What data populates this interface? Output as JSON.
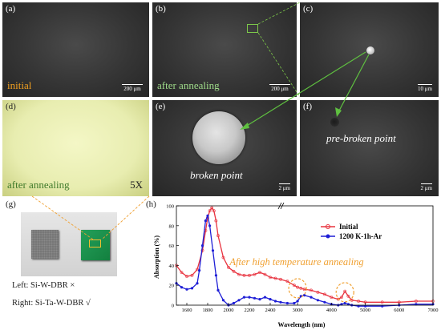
{
  "panels": {
    "a": {
      "label": "(a)",
      "caption": "initial",
      "scale": "200 μm"
    },
    "b": {
      "label": "(b)",
      "caption": "after annealing",
      "scale": "200 μm"
    },
    "c": {
      "label": "(c)",
      "scale": "10 μm"
    },
    "d": {
      "label": "(d)",
      "caption": "after annealing",
      "magnification": "5X"
    },
    "e": {
      "label": "(e)",
      "caption": "broken point",
      "scale": "2 μm"
    },
    "f": {
      "label": "(f)",
      "caption": "pre-broken point",
      "scale": "2 μm"
    },
    "g": {
      "label": "(g)",
      "left_text": "Left: Si-W-DBR ×",
      "right_text": "Right: Si-Ta-W-DBR √"
    },
    "h": {
      "label": "(h)",
      "annotation": "After high temperature annealing"
    }
  },
  "colors": {
    "initial": "#e8333f",
    "annealed": "#1f1fd6",
    "annotation": "#f0a030",
    "caption_orange": "#f2a020",
    "caption_green": "#9fdc8a"
  },
  "chart_data": {
    "type": "line",
    "xlabel": "Wavelength (nm)",
    "ylabel": "Absorption (%)",
    "xlim": [
      1500,
      7000
    ],
    "ylim": [
      0,
      100
    ],
    "xticks_low": [
      1600,
      1800,
      2000,
      2200,
      2400
    ],
    "xticks_high": [
      3000,
      4000,
      5000,
      6000,
      7000
    ],
    "yticks": [
      0,
      20,
      40,
      60,
      80,
      100
    ],
    "legend": "top-right",
    "series": [
      {
        "name": "Initial",
        "color": "#e8333f",
        "x": [
          1500,
          1550,
          1600,
          1650,
          1700,
          1750,
          1780,
          1800,
          1820,
          1840,
          1860,
          1880,
          1900,
          1950,
          2000,
          2050,
          2100,
          2150,
          2200,
          2250,
          2300,
          2350,
          2400,
          2450,
          2500,
          2700,
          2900,
          3000,
          3100,
          3200,
          3400,
          3600,
          3800,
          4000,
          4200,
          4300,
          4400,
          4500,
          4600,
          4800,
          5000,
          5500,
          6000,
          6500,
          7000
        ],
        "y": [
          40,
          33,
          29,
          30,
          36,
          55,
          75,
          88,
          95,
          98,
          95,
          85,
          70,
          48,
          38,
          34,
          31,
          30,
          30,
          31,
          33,
          31,
          28,
          27,
          26,
          24,
          20,
          18,
          17,
          16,
          15,
          13,
          11,
          8,
          6,
          8,
          14,
          9,
          5,
          4,
          3,
          3,
          3,
          4,
          4
        ]
      },
      {
        "name": "1200 K-1h-Ar",
        "color": "#1f1fd6",
        "x": [
          1500,
          1550,
          1600,
          1650,
          1700,
          1720,
          1750,
          1780,
          1800,
          1820,
          1850,
          1880,
          1900,
          1950,
          2000,
          2050,
          2100,
          2150,
          2200,
          2250,
          2300,
          2350,
          2400,
          2450,
          2500,
          2700,
          2900,
          3000,
          3100,
          3200,
          3400,
          3600,
          3800,
          4000,
          4200,
          4300,
          4400,
          4500,
          4600,
          4800,
          5000,
          5500,
          6000,
          6500,
          7000
        ],
        "y": [
          22,
          18,
          16,
          17,
          22,
          35,
          60,
          85,
          90,
          80,
          55,
          30,
          15,
          5,
          0,
          2,
          5,
          8,
          8,
          7,
          6,
          8,
          6,
          4,
          3,
          2,
          2,
          4,
          9,
          10,
          8,
          5,
          3,
          1,
          0,
          1,
          2,
          1,
          0,
          -1,
          -1,
          -1,
          0,
          1,
          1
        ]
      }
    ]
  }
}
